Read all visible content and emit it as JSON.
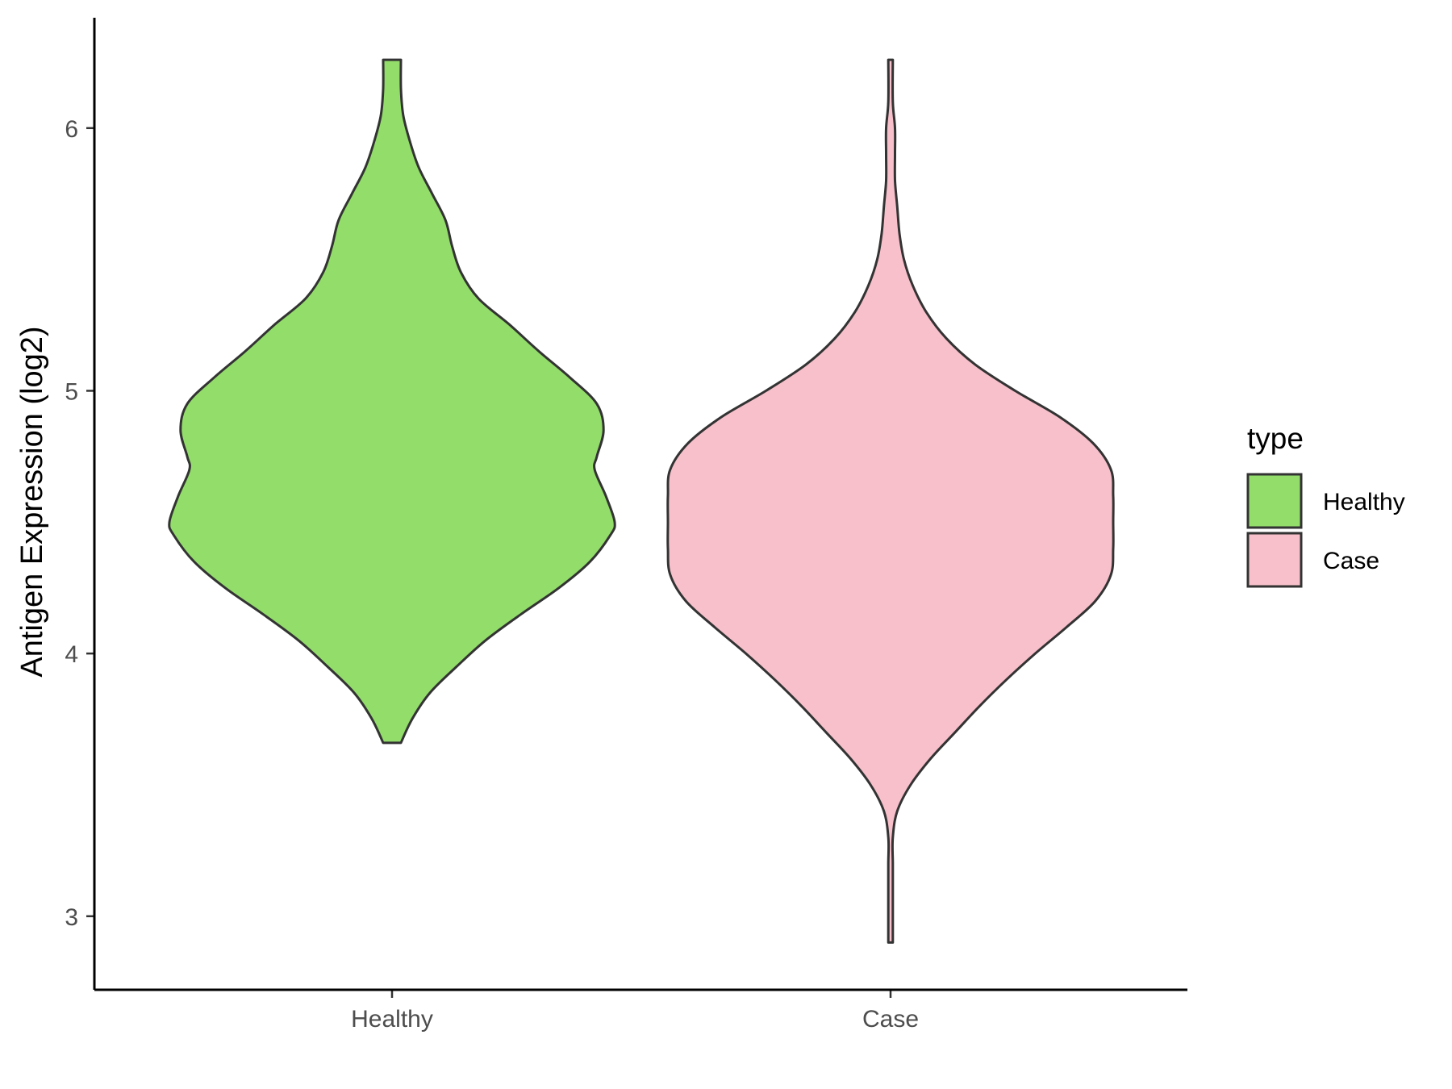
{
  "chart_data": {
    "type": "violin",
    "ylabel": "Antigen Expression (log2)",
    "xlabel": "",
    "categories": [
      "Healthy",
      "Case"
    ],
    "ylim": [
      2.72,
      6.42
    ],
    "yticks": [
      3,
      4,
      5,
      6
    ],
    "ytick_labels": [
      "3",
      "4",
      "5",
      "6"
    ],
    "grid": false,
    "legend": {
      "title": "type",
      "position": "right",
      "entries": [
        {
          "label": "Healthy",
          "color": "#93dd6b"
        },
        {
          "label": "Case",
          "color": "#f7c0cb"
        }
      ]
    },
    "series": [
      {
        "category": "Healthy",
        "color": "#93dd6b",
        "y_min": 3.66,
        "y_max": 6.26,
        "density_profile": [
          [
            3.66,
            0.04
          ],
          [
            3.75,
            0.09
          ],
          [
            3.85,
            0.17
          ],
          [
            3.95,
            0.29
          ],
          [
            4.05,
            0.42
          ],
          [
            4.15,
            0.58
          ],
          [
            4.25,
            0.75
          ],
          [
            4.35,
            0.89
          ],
          [
            4.45,
            0.98
          ],
          [
            4.5,
            1.0
          ],
          [
            4.6,
            0.96
          ],
          [
            4.7,
            0.91
          ],
          [
            4.75,
            0.92
          ],
          [
            4.85,
            0.95
          ],
          [
            4.95,
            0.92
          ],
          [
            5.05,
            0.8
          ],
          [
            5.15,
            0.66
          ],
          [
            5.25,
            0.53
          ],
          [
            5.35,
            0.39
          ],
          [
            5.45,
            0.31
          ],
          [
            5.55,
            0.27
          ],
          [
            5.65,
            0.24
          ],
          [
            5.75,
            0.18
          ],
          [
            5.85,
            0.12
          ],
          [
            5.95,
            0.08
          ],
          [
            6.05,
            0.05
          ],
          [
            6.15,
            0.04
          ],
          [
            6.26,
            0.04
          ]
        ]
      },
      {
        "category": "Case",
        "color": "#f7c0cb",
        "y_min": 2.9,
        "y_max": 6.26,
        "density_profile": [
          [
            2.9,
            0.01
          ],
          [
            3.0,
            0.01
          ],
          [
            3.1,
            0.01
          ],
          [
            3.2,
            0.01
          ],
          [
            3.3,
            0.01
          ],
          [
            3.4,
            0.03
          ],
          [
            3.5,
            0.09
          ],
          [
            3.6,
            0.18
          ],
          [
            3.7,
            0.29
          ],
          [
            3.8,
            0.4
          ],
          [
            3.9,
            0.52
          ],
          [
            4.0,
            0.65
          ],
          [
            4.1,
            0.79
          ],
          [
            4.2,
            0.92
          ],
          [
            4.3,
            0.99
          ],
          [
            4.4,
            1.0
          ],
          [
            4.5,
            1.0
          ],
          [
            4.6,
            1.0
          ],
          [
            4.7,
            0.99
          ],
          [
            4.8,
            0.91
          ],
          [
            4.9,
            0.76
          ],
          [
            5.0,
            0.56
          ],
          [
            5.1,
            0.38
          ],
          [
            5.2,
            0.25
          ],
          [
            5.3,
            0.16
          ],
          [
            5.4,
            0.1
          ],
          [
            5.5,
            0.06
          ],
          [
            5.6,
            0.04
          ],
          [
            5.7,
            0.03
          ],
          [
            5.8,
            0.02
          ],
          [
            5.9,
            0.02
          ],
          [
            6.0,
            0.02
          ],
          [
            6.1,
            0.01
          ],
          [
            6.26,
            0.01
          ]
        ]
      }
    ]
  }
}
